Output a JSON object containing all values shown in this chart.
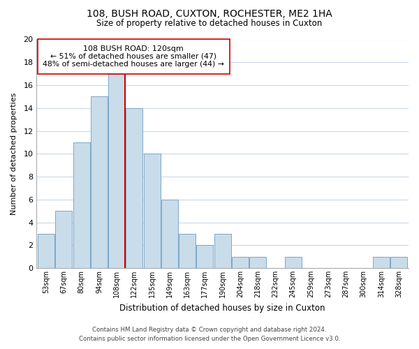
{
  "title": "108, BUSH ROAD, CUXTON, ROCHESTER, ME2 1HA",
  "subtitle": "Size of property relative to detached houses in Cuxton",
  "xlabel": "Distribution of detached houses by size in Cuxton",
  "ylabel": "Number of detached properties",
  "bar_labels": [
    "53sqm",
    "67sqm",
    "80sqm",
    "94sqm",
    "108sqm",
    "122sqm",
    "135sqm",
    "149sqm",
    "163sqm",
    "177sqm",
    "190sqm",
    "204sqm",
    "218sqm",
    "232sqm",
    "245sqm",
    "259sqm",
    "273sqm",
    "287sqm",
    "300sqm",
    "314sqm",
    "328sqm"
  ],
  "bar_values": [
    3,
    5,
    11,
    15,
    17,
    14,
    10,
    6,
    3,
    2,
    3,
    1,
    1,
    0,
    1,
    0,
    0,
    0,
    0,
    1,
    1
  ],
  "bar_color": "#c9dcea",
  "bar_edge_color": "#7aa8c8",
  "vline_color": "#cc0000",
  "vline_x_index": 4,
  "ylim": [
    0,
    20
  ],
  "yticks": [
    0,
    2,
    4,
    6,
    8,
    10,
    12,
    14,
    16,
    18,
    20
  ],
  "annotation_title": "108 BUSH ROAD: 120sqm",
  "annotation_line1": "← 51% of detached houses are smaller (47)",
  "annotation_line2": "48% of semi-detached houses are larger (44) →",
  "annotation_box_color": "#ffffff",
  "annotation_box_edge": "#cc0000",
  "footer_line1": "Contains HM Land Registry data © Crown copyright and database right 2024.",
  "footer_line2": "Contains public sector information licensed under the Open Government Licence v3.0.",
  "background_color": "#ffffff",
  "grid_color": "#c8d8e8"
}
